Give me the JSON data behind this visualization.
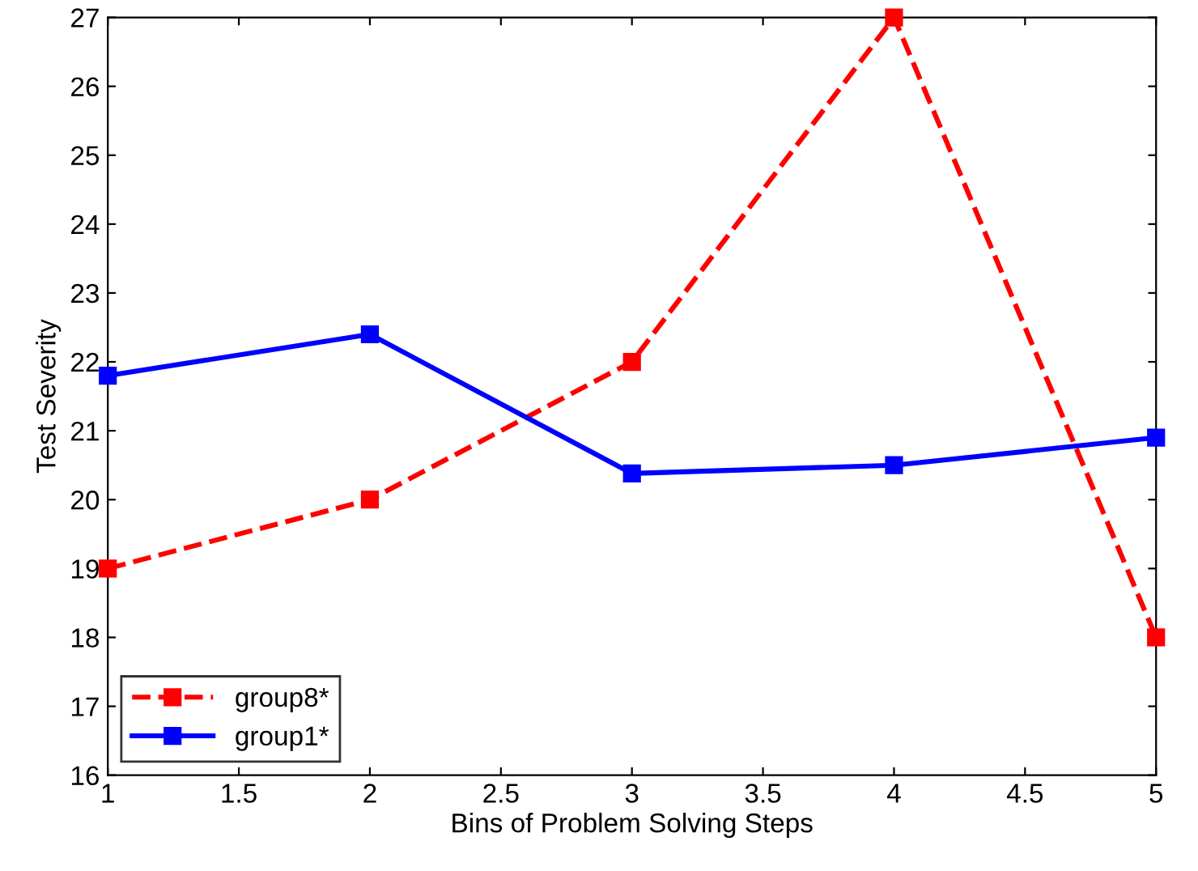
{
  "chart_data": {
    "type": "line",
    "xlabel": "Bins of Problem Solving Steps",
    "ylabel": "Test Severity",
    "x": [
      1,
      2,
      3,
      4,
      5
    ],
    "series": [
      {
        "name": "group8*",
        "color": "#ff0000",
        "line_style": "dashed",
        "values": [
          19,
          20,
          22,
          27,
          18
        ]
      },
      {
        "name": "group1*",
        "color": "#0000ff",
        "line_style": "solid",
        "values": [
          21.8,
          22.4,
          20.38,
          20.5,
          20.9
        ]
      }
    ],
    "xlim": [
      1,
      5
    ],
    "xticks": [
      1,
      1.5,
      2,
      2.5,
      3,
      3.5,
      4,
      4.5,
      5
    ],
    "ylim": [
      16,
      27
    ],
    "yticks": [
      16,
      17,
      18,
      19,
      20,
      21,
      22,
      23,
      24,
      25,
      26,
      27
    ],
    "marker": "square",
    "legend": "lower left",
    "grid": false
  }
}
